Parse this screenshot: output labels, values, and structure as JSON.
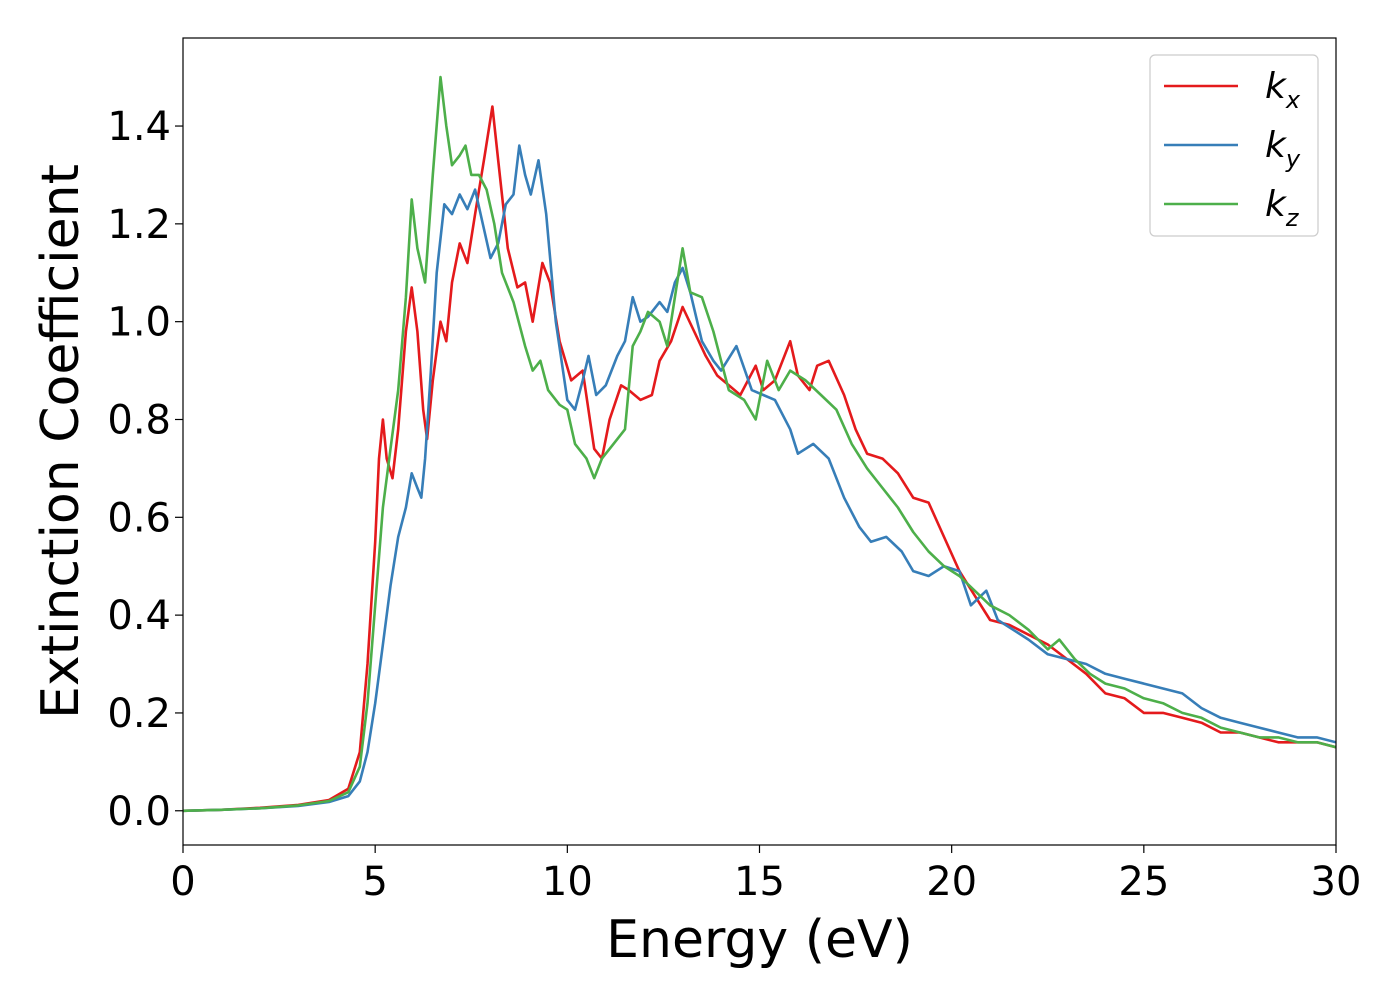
{
  "chart_data": {
    "type": "line",
    "xlabel": "Energy (eV)",
    "ylabel": "Extinction Coefficient",
    "xlim": [
      0,
      30
    ],
    "ylim": [
      -0.07,
      1.58
    ],
    "xticks": [
      0,
      5,
      10,
      15,
      20,
      25,
      30
    ],
    "xtick_labels": [
      "0",
      "5",
      "10",
      "15",
      "20",
      "25",
      "30"
    ],
    "yticks": [
      0.0,
      0.2,
      0.4,
      0.6,
      0.8,
      1.0,
      1.2,
      1.4
    ],
    "ytick_labels": [
      "0.0",
      "0.2",
      "0.4",
      "0.6",
      "0.8",
      "1.0",
      "1.2",
      "1.4"
    ],
    "grid": false,
    "legend_position": "top-right",
    "series": [
      {
        "name": "k_x",
        "label_main": "k",
        "label_sub": "x",
        "color": "#e41a1c",
        "points": [
          [
            0,
            0.0
          ],
          [
            1,
            0.002
          ],
          [
            2,
            0.006
          ],
          [
            3,
            0.012
          ],
          [
            3.8,
            0.022
          ],
          [
            4.3,
            0.045
          ],
          [
            4.6,
            0.12
          ],
          [
            4.8,
            0.3
          ],
          [
            5.0,
            0.55
          ],
          [
            5.1,
            0.72
          ],
          [
            5.2,
            0.8
          ],
          [
            5.3,
            0.72
          ],
          [
            5.45,
            0.68
          ],
          [
            5.6,
            0.78
          ],
          [
            5.8,
            0.98
          ],
          [
            5.95,
            1.07
          ],
          [
            6.1,
            0.98
          ],
          [
            6.25,
            0.82
          ],
          [
            6.35,
            0.76
          ],
          [
            6.5,
            0.88
          ],
          [
            6.7,
            1.0
          ],
          [
            6.85,
            0.96
          ],
          [
            7.0,
            1.08
          ],
          [
            7.2,
            1.16
          ],
          [
            7.4,
            1.12
          ],
          [
            7.6,
            1.22
          ],
          [
            7.85,
            1.34
          ],
          [
            8.05,
            1.44
          ],
          [
            8.2,
            1.33
          ],
          [
            8.45,
            1.15
          ],
          [
            8.7,
            1.07
          ],
          [
            8.9,
            1.08
          ],
          [
            9.1,
            1.0
          ],
          [
            9.35,
            1.12
          ],
          [
            9.55,
            1.08
          ],
          [
            9.8,
            0.96
          ],
          [
            10.1,
            0.88
          ],
          [
            10.4,
            0.9
          ],
          [
            10.7,
            0.74
          ],
          [
            10.9,
            0.72
          ],
          [
            11.1,
            0.8
          ],
          [
            11.4,
            0.87
          ],
          [
            11.6,
            0.86
          ],
          [
            11.9,
            0.84
          ],
          [
            12.2,
            0.85
          ],
          [
            12.4,
            0.92
          ],
          [
            12.7,
            0.96
          ],
          [
            13.0,
            1.03
          ],
          [
            13.3,
            0.98
          ],
          [
            13.6,
            0.93
          ],
          [
            13.9,
            0.89
          ],
          [
            14.2,
            0.87
          ],
          [
            14.5,
            0.85
          ],
          [
            14.9,
            0.91
          ],
          [
            15.1,
            0.86
          ],
          [
            15.4,
            0.88
          ],
          [
            15.8,
            0.96
          ],
          [
            16.0,
            0.89
          ],
          [
            16.3,
            0.86
          ],
          [
            16.5,
            0.91
          ],
          [
            16.8,
            0.92
          ],
          [
            17.2,
            0.85
          ],
          [
            17.5,
            0.78
          ],
          [
            17.8,
            0.73
          ],
          [
            18.2,
            0.72
          ],
          [
            18.6,
            0.69
          ],
          [
            19.0,
            0.64
          ],
          [
            19.4,
            0.63
          ],
          [
            19.8,
            0.56
          ],
          [
            20.2,
            0.49
          ],
          [
            20.6,
            0.44
          ],
          [
            21.0,
            0.39
          ],
          [
            21.5,
            0.38
          ],
          [
            22.0,
            0.36
          ],
          [
            22.5,
            0.34
          ],
          [
            23.0,
            0.31
          ],
          [
            23.5,
            0.28
          ],
          [
            24.0,
            0.24
          ],
          [
            24.5,
            0.23
          ],
          [
            25.0,
            0.2
          ],
          [
            25.5,
            0.2
          ],
          [
            26.0,
            0.19
          ],
          [
            26.5,
            0.18
          ],
          [
            27.0,
            0.16
          ],
          [
            27.5,
            0.16
          ],
          [
            28.0,
            0.15
          ],
          [
            28.5,
            0.14
          ],
          [
            29.0,
            0.14
          ],
          [
            29.5,
            0.14
          ],
          [
            30.0,
            0.13
          ]
        ]
      },
      {
        "name": "k_y",
        "label_main": "k",
        "label_sub": "y",
        "color": "#377eb8",
        "points": [
          [
            0,
            0.0
          ],
          [
            1,
            0.002
          ],
          [
            2,
            0.005
          ],
          [
            3,
            0.01
          ],
          [
            3.8,
            0.018
          ],
          [
            4.3,
            0.03
          ],
          [
            4.6,
            0.06
          ],
          [
            4.8,
            0.12
          ],
          [
            5.0,
            0.22
          ],
          [
            5.2,
            0.34
          ],
          [
            5.4,
            0.46
          ],
          [
            5.6,
            0.56
          ],
          [
            5.8,
            0.62
          ],
          [
            5.95,
            0.69
          ],
          [
            6.1,
            0.66
          ],
          [
            6.2,
            0.64
          ],
          [
            6.3,
            0.72
          ],
          [
            6.45,
            0.9
          ],
          [
            6.6,
            1.1
          ],
          [
            6.8,
            1.24
          ],
          [
            7.0,
            1.22
          ],
          [
            7.2,
            1.26
          ],
          [
            7.4,
            1.23
          ],
          [
            7.6,
            1.27
          ],
          [
            7.8,
            1.2
          ],
          [
            8.0,
            1.13
          ],
          [
            8.2,
            1.16
          ],
          [
            8.4,
            1.24
          ],
          [
            8.6,
            1.26
          ],
          [
            8.75,
            1.36
          ],
          [
            8.9,
            1.3
          ],
          [
            9.05,
            1.26
          ],
          [
            9.25,
            1.33
          ],
          [
            9.45,
            1.22
          ],
          [
            9.7,
            1.0
          ],
          [
            10.0,
            0.84
          ],
          [
            10.2,
            0.82
          ],
          [
            10.4,
            0.88
          ],
          [
            10.55,
            0.93
          ],
          [
            10.75,
            0.85
          ],
          [
            11.0,
            0.87
          ],
          [
            11.3,
            0.93
          ],
          [
            11.5,
            0.96
          ],
          [
            11.7,
            1.05
          ],
          [
            11.9,
            1.0
          ],
          [
            12.1,
            1.01
          ],
          [
            12.4,
            1.04
          ],
          [
            12.6,
            1.02
          ],
          [
            12.8,
            1.08
          ],
          [
            13.0,
            1.11
          ],
          [
            13.2,
            1.06
          ],
          [
            13.5,
            0.96
          ],
          [
            13.8,
            0.92
          ],
          [
            14.0,
            0.9
          ],
          [
            14.4,
            0.95
          ],
          [
            14.8,
            0.86
          ],
          [
            15.1,
            0.85
          ],
          [
            15.4,
            0.84
          ],
          [
            15.8,
            0.78
          ],
          [
            16.0,
            0.73
          ],
          [
            16.4,
            0.75
          ],
          [
            16.8,
            0.72
          ],
          [
            17.2,
            0.64
          ],
          [
            17.6,
            0.58
          ],
          [
            17.9,
            0.55
          ],
          [
            18.3,
            0.56
          ],
          [
            18.7,
            0.53
          ],
          [
            19.0,
            0.49
          ],
          [
            19.4,
            0.48
          ],
          [
            19.8,
            0.5
          ],
          [
            20.2,
            0.49
          ],
          [
            20.5,
            0.42
          ],
          [
            20.9,
            0.45
          ],
          [
            21.2,
            0.39
          ],
          [
            21.6,
            0.37
          ],
          [
            22.0,
            0.35
          ],
          [
            22.5,
            0.32
          ],
          [
            23.0,
            0.31
          ],
          [
            23.5,
            0.3
          ],
          [
            24.0,
            0.28
          ],
          [
            24.5,
            0.27
          ],
          [
            25.0,
            0.26
          ],
          [
            25.5,
            0.25
          ],
          [
            26.0,
            0.24
          ],
          [
            26.5,
            0.21
          ],
          [
            27.0,
            0.19
          ],
          [
            27.5,
            0.18
          ],
          [
            28.0,
            0.17
          ],
          [
            28.5,
            0.16
          ],
          [
            29.0,
            0.15
          ],
          [
            29.5,
            0.15
          ],
          [
            30.0,
            0.14
          ]
        ]
      },
      {
        "name": "k_z",
        "label_main": "k",
        "label_sub": "z",
        "color": "#4daf4a",
        "points": [
          [
            0,
            0.0
          ],
          [
            1,
            0.002
          ],
          [
            2,
            0.005
          ],
          [
            3,
            0.011
          ],
          [
            3.8,
            0.02
          ],
          [
            4.3,
            0.038
          ],
          [
            4.6,
            0.09
          ],
          [
            4.8,
            0.22
          ],
          [
            5.0,
            0.42
          ],
          [
            5.2,
            0.62
          ],
          [
            5.4,
            0.74
          ],
          [
            5.6,
            0.86
          ],
          [
            5.8,
            1.05
          ],
          [
            5.95,
            1.25
          ],
          [
            6.1,
            1.15
          ],
          [
            6.3,
            1.08
          ],
          [
            6.5,
            1.3
          ],
          [
            6.7,
            1.5
          ],
          [
            6.85,
            1.4
          ],
          [
            7.0,
            1.32
          ],
          [
            7.2,
            1.34
          ],
          [
            7.35,
            1.36
          ],
          [
            7.5,
            1.3
          ],
          [
            7.7,
            1.3
          ],
          [
            7.9,
            1.27
          ],
          [
            8.1,
            1.2
          ],
          [
            8.3,
            1.1
          ],
          [
            8.6,
            1.04
          ],
          [
            8.9,
            0.95
          ],
          [
            9.1,
            0.9
          ],
          [
            9.3,
            0.92
          ],
          [
            9.5,
            0.86
          ],
          [
            9.8,
            0.83
          ],
          [
            10.0,
            0.82
          ],
          [
            10.2,
            0.75
          ],
          [
            10.5,
            0.72
          ],
          [
            10.7,
            0.68
          ],
          [
            10.9,
            0.72
          ],
          [
            11.2,
            0.75
          ],
          [
            11.5,
            0.78
          ],
          [
            11.7,
            0.95
          ],
          [
            11.9,
            0.98
          ],
          [
            12.1,
            1.02
          ],
          [
            12.4,
            1.0
          ],
          [
            12.6,
            0.95
          ],
          [
            12.8,
            1.05
          ],
          [
            13.0,
            1.15
          ],
          [
            13.2,
            1.06
          ],
          [
            13.5,
            1.05
          ],
          [
            13.8,
            0.98
          ],
          [
            14.0,
            0.92
          ],
          [
            14.2,
            0.86
          ],
          [
            14.6,
            0.84
          ],
          [
            14.9,
            0.8
          ],
          [
            15.2,
            0.92
          ],
          [
            15.5,
            0.86
          ],
          [
            15.8,
            0.9
          ],
          [
            16.2,
            0.88
          ],
          [
            16.6,
            0.85
          ],
          [
            17.0,
            0.82
          ],
          [
            17.4,
            0.75
          ],
          [
            17.8,
            0.7
          ],
          [
            18.2,
            0.66
          ],
          [
            18.6,
            0.62
          ],
          [
            19.0,
            0.57
          ],
          [
            19.4,
            0.53
          ],
          [
            19.8,
            0.5
          ],
          [
            20.2,
            0.48
          ],
          [
            20.6,
            0.45
          ],
          [
            21.0,
            0.42
          ],
          [
            21.5,
            0.4
          ],
          [
            22.0,
            0.37
          ],
          [
            22.5,
            0.33
          ],
          [
            22.8,
            0.35
          ],
          [
            23.2,
            0.31
          ],
          [
            23.6,
            0.28
          ],
          [
            24.0,
            0.26
          ],
          [
            24.5,
            0.25
          ],
          [
            25.0,
            0.23
          ],
          [
            25.5,
            0.22
          ],
          [
            26.0,
            0.2
          ],
          [
            26.5,
            0.19
          ],
          [
            27.0,
            0.17
          ],
          [
            27.5,
            0.16
          ],
          [
            28.0,
            0.15
          ],
          [
            28.5,
            0.15
          ],
          [
            29.0,
            0.14
          ],
          [
            29.5,
            0.14
          ],
          [
            30.0,
            0.13
          ]
        ]
      }
    ]
  }
}
